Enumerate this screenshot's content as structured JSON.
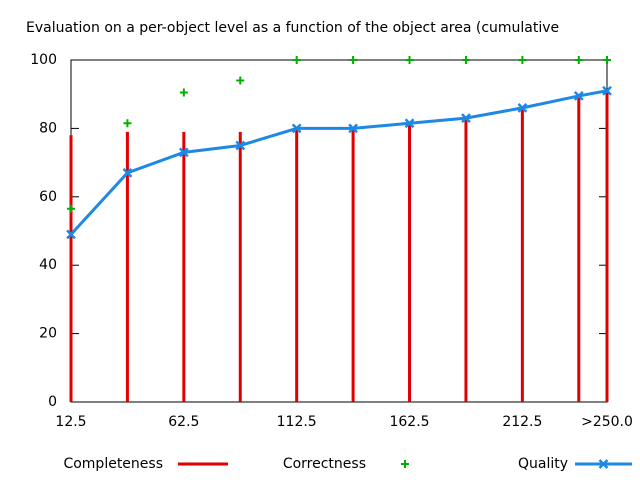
{
  "chart_data": {
    "type": "line",
    "title": "Evaluation on a per-object level as a function of the object area (cumulative",
    "x": [
      12.5,
      37.5,
      62.5,
      87.5,
      112.5,
      137.5,
      162.5,
      187.5,
      212.5,
      237.5,
      250
    ],
    "xlim": [
      12.5,
      250
    ],
    "xticks": [
      12.5,
      62.5,
      112.5,
      162.5,
      212.5,
      {
        "value": 250,
        "label": ">250.0"
      }
    ],
    "ylim": [
      0,
      100
    ],
    "yticks": [
      0,
      20,
      40,
      60,
      80,
      100
    ],
    "series": [
      {
        "name": "Completeness",
        "color": "#e00000",
        "style": "impulses",
        "values": [
          78,
          79,
          79,
          79,
          80,
          80,
          82,
          83,
          86,
          89,
          91
        ]
      },
      {
        "name": "Correctness",
        "color": "#00b000",
        "style": "points",
        "values": [
          56.5,
          81.5,
          90.5,
          94,
          100,
          100,
          100,
          100,
          100,
          100,
          100
        ]
      },
      {
        "name": "Quality",
        "color": "#1e88e5",
        "style": "linespoints",
        "values": [
          49,
          67,
          73,
          75,
          80,
          80,
          81.5,
          83,
          86,
          89.5,
          91
        ]
      }
    ],
    "legend": "bottom"
  }
}
